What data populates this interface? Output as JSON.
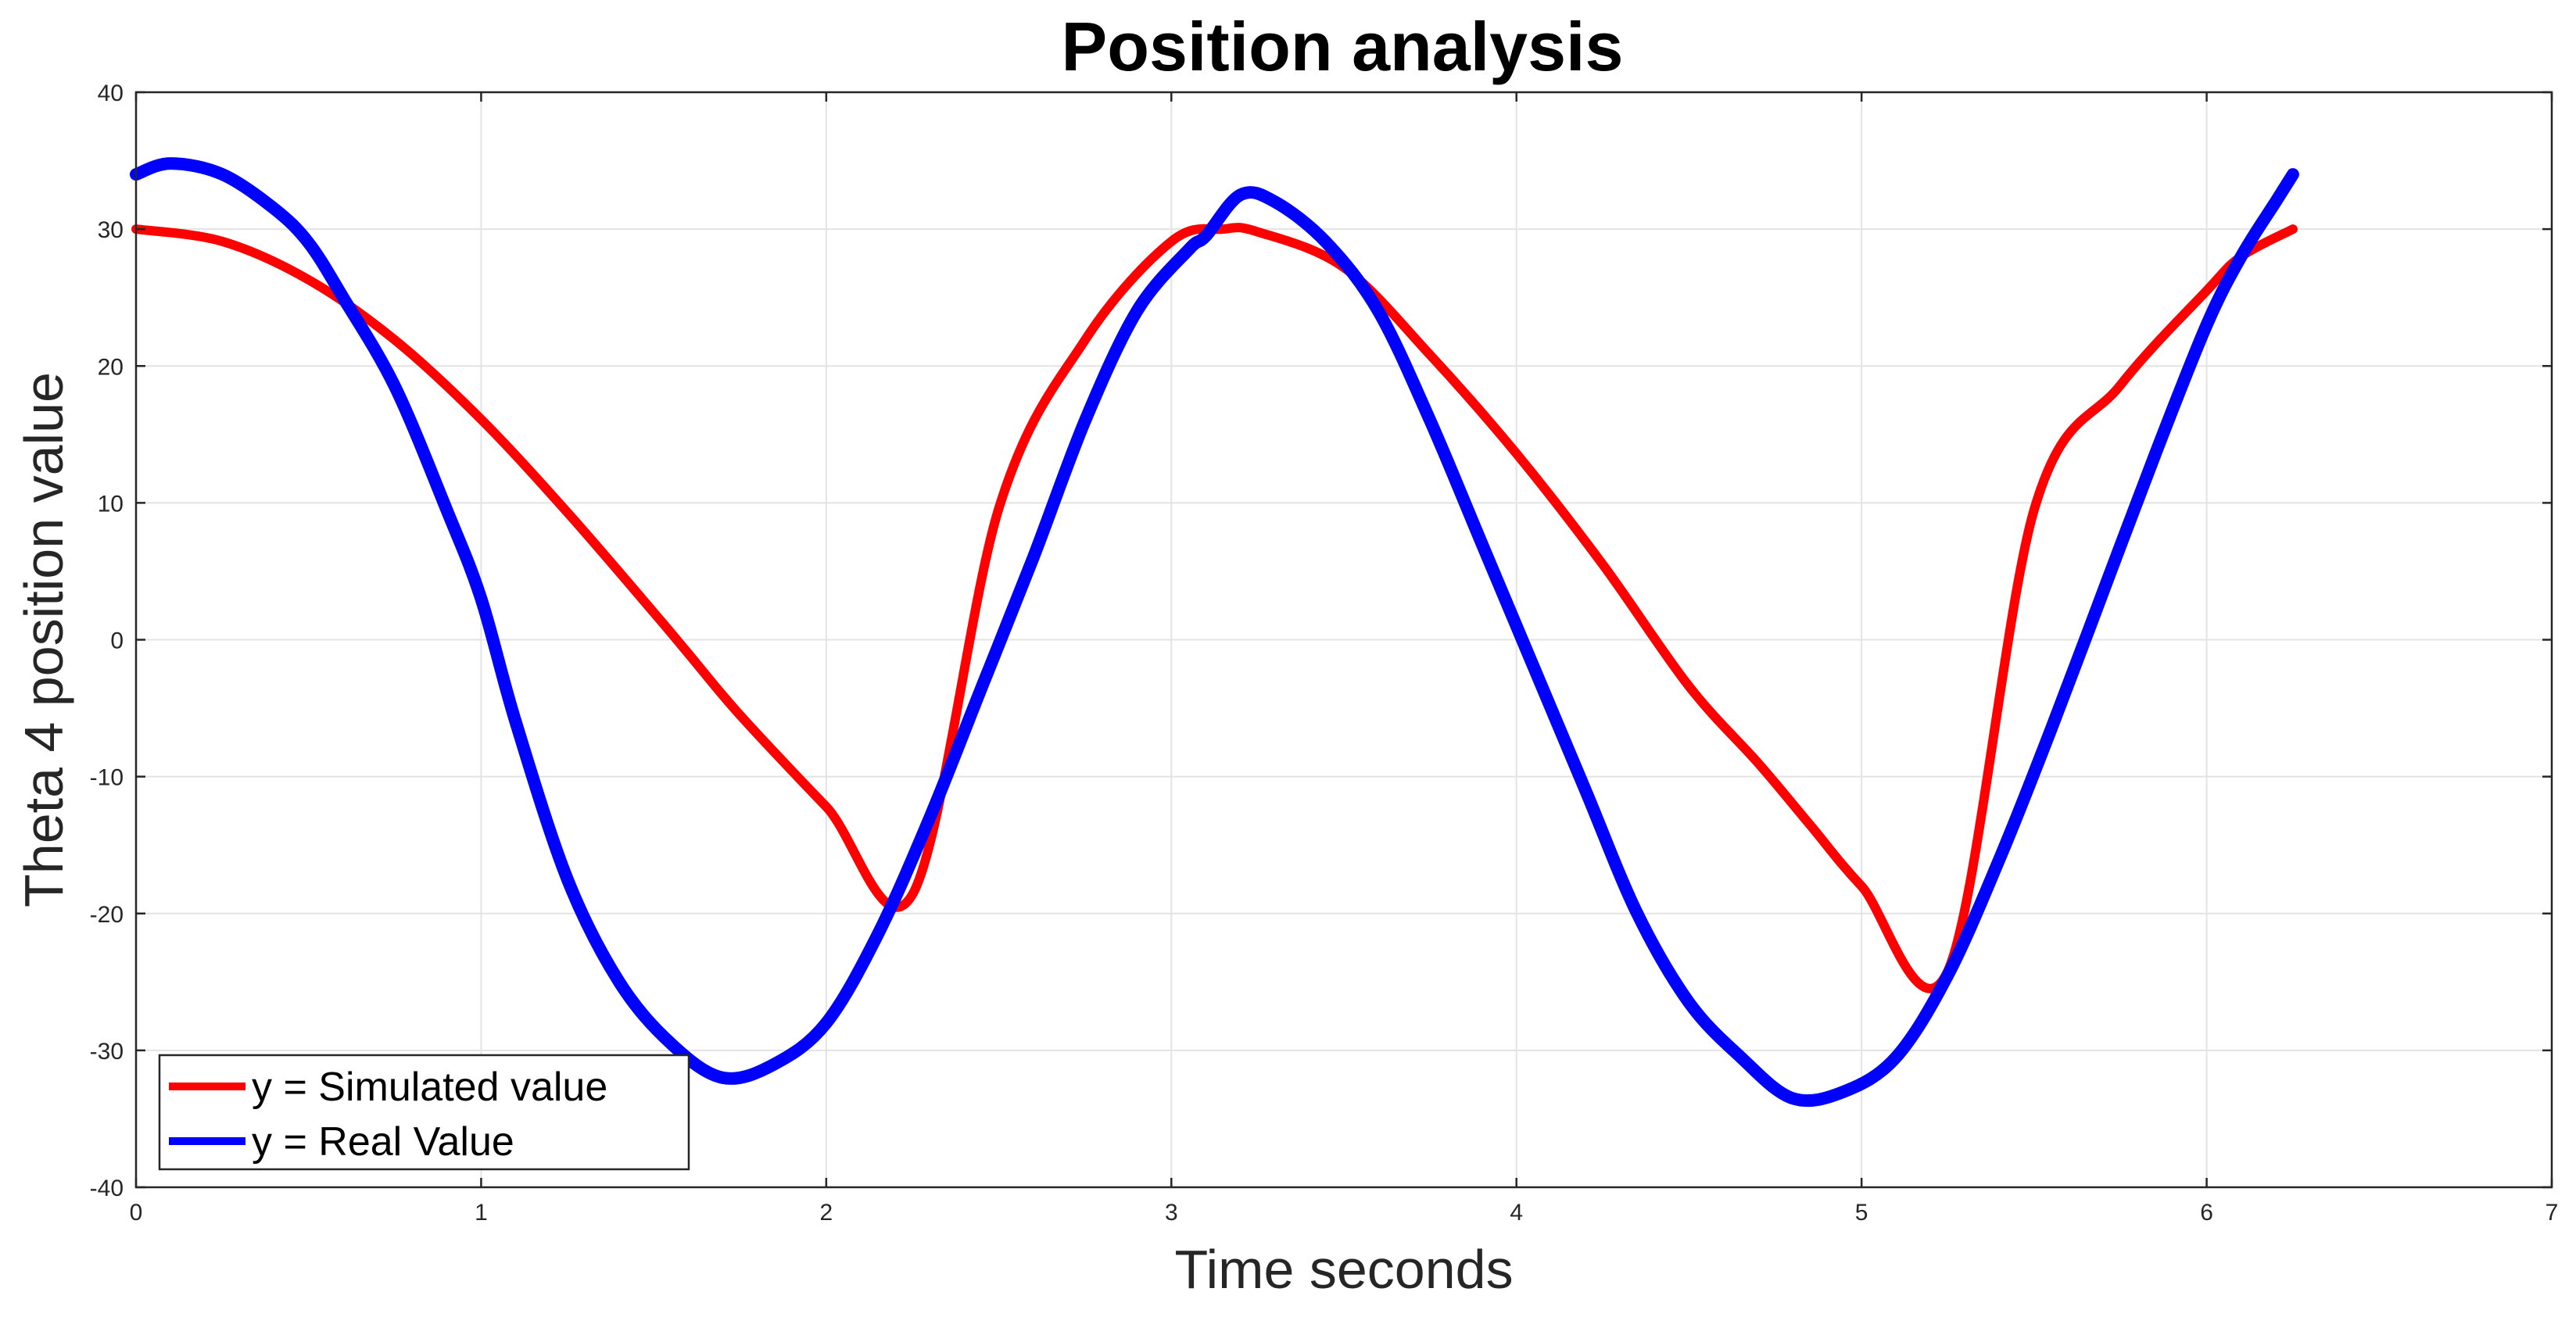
{
  "chart_data": {
    "type": "line",
    "title": "Position analysis",
    "xlabel": "Time seconds",
    "ylabel": "Theta 4 position value",
    "xlim": [
      0,
      7
    ],
    "ylim": [
      -40,
      40
    ],
    "xticks": [
      0,
      1,
      2,
      3,
      4,
      5,
      6,
      7
    ],
    "yticks": [
      -40,
      -30,
      -20,
      -10,
      0,
      10,
      20,
      30,
      40
    ],
    "grid": true,
    "legend_position": "bottom-left",
    "series": [
      {
        "name": "y = Simulated value",
        "color": "#ff0000",
        "x": [
          0,
          0.25,
          0.5,
          0.75,
          1.0,
          1.25,
          1.5,
          1.6,
          1.75,
          2.0,
          2.25,
          2.5,
          2.75,
          3.0,
          3.15,
          3.25,
          3.5,
          3.75,
          4.0,
          4.25,
          4.5,
          4.7,
          4.85,
          5.0,
          5.25,
          5.5,
          5.75,
          6.0,
          6.1,
          6.25
        ],
        "y": [
          30.0,
          29.1,
          26.3,
          21.9,
          16.1,
          9.3,
          2.0,
          -1.0,
          -5.5,
          -12.2,
          -18.6,
          9.6,
          21.9,
          29.1,
          30.0,
          29.8,
          27.2,
          20.8,
          13.6,
          5.5,
          -3.4,
          -9.0,
          -13.5,
          -18.0,
          -24.2,
          9.5,
          18.6,
          25.5,
          28.0,
          30.0
        ]
      },
      {
        "name": "y = Real Value",
        "color": "#0000ff",
        "x": [
          0,
          0.1,
          0.25,
          0.4,
          0.5,
          0.6,
          0.75,
          0.9,
          1.0,
          1.1,
          1.25,
          1.4,
          1.55,
          1.7,
          1.85,
          2.0,
          2.15,
          2.3,
          2.45,
          2.6,
          2.75,
          2.9,
          3.05,
          3.1,
          3.2,
          3.3,
          3.45,
          3.6,
          3.75,
          3.9,
          4.05,
          4.2,
          4.35,
          4.5,
          4.65,
          4.8,
          4.95,
          5.1,
          5.25,
          5.4,
          5.55,
          5.7,
          5.85,
          6.0,
          6.1,
          6.2,
          6.25
        ],
        "y": [
          34.0,
          34.8,
          34.0,
          31.5,
          29.0,
          25.0,
          18.5,
          9.5,
          3.0,
          -6.0,
          -17.5,
          -25.0,
          -29.5,
          -32.0,
          -31.0,
          -28.0,
          -21.5,
          -13.0,
          -3.5,
          6.0,
          16.0,
          24.0,
          28.5,
          29.5,
          32.5,
          32.0,
          29.0,
          24.0,
          16.0,
          7.0,
          -2.0,
          -11.0,
          -20.0,
          -26.5,
          -30.5,
          -33.5,
          -33.0,
          -30.5,
          -24.5,
          -16.0,
          -6.5,
          3.5,
          13.5,
          23.0,
          28.0,
          32.0,
          34.0
        ]
      }
    ]
  }
}
